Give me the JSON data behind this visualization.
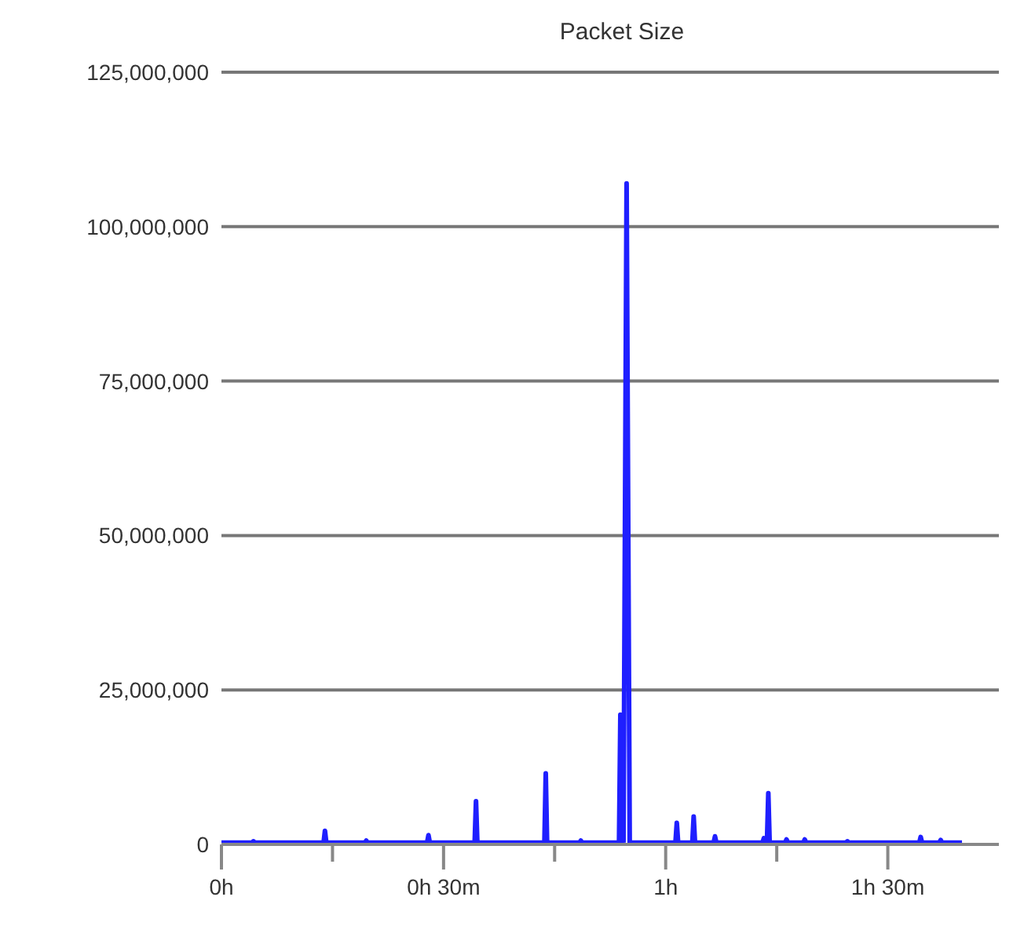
{
  "chart_data": {
    "type": "line",
    "title": "Packet Size",
    "x": [
      0,
      0.069,
      0.072,
      0.075,
      0.23,
      0.233,
      0.236,
      0.323,
      0.326,
      0.329,
      0.463,
      0.466,
      0.469,
      0.57,
      0.573,
      0.576,
      0.727,
      0.73,
      0.733,
      0.806,
      0.809,
      0.812,
      0.895,
      0.898,
      0.905,
      0.912,
      0.919,
      1.022,
      1.025,
      1.028,
      1.06,
      1.063,
      1.066,
      1.108,
      1.111,
      1.114,
      1.218,
      1.221,
      1.224,
      1.228,
      1.231,
      1.234,
      1.269,
      1.272,
      1.275,
      1.31,
      1.313,
      1.316,
      1.406,
      1.409,
      1.412,
      1.571,
      1.574,
      1.577,
      1.616,
      1.619,
      1.622,
      1.667
    ],
    "series": [
      {
        "color": "#1f1fff",
        "values": [
          300000,
          300000,
          500000,
          300000,
          300000,
          2200000,
          300000,
          300000,
          600000,
          300000,
          300000,
          1500000,
          300000,
          300000,
          7000000,
          300000,
          300000,
          11500000,
          300000,
          300000,
          600000,
          300000,
          300000,
          21000000,
          300000,
          107000000,
          300000,
          300000,
          3500000,
          300000,
          300000,
          4500000,
          300000,
          300000,
          1300000,
          300000,
          300000,
          1000000,
          300000,
          300000,
          8300000,
          300000,
          300000,
          800000,
          300000,
          300000,
          800000,
          300000,
          300000,
          500000,
          300000,
          300000,
          1200000,
          300000,
          300000,
          700000,
          300000,
          300000
        ]
      }
    ],
    "xlim": [
      0,
      1.75
    ],
    "xticks": [
      {
        "value": 0,
        "label": "0h"
      },
      {
        "value": 0.25,
        "label": null
      },
      {
        "value": 0.5,
        "label": "0h 30m"
      },
      {
        "value": 0.75,
        "label": null
      },
      {
        "value": 1,
        "label": "1h"
      },
      {
        "value": 1.25,
        "label": null
      },
      {
        "value": 1.5,
        "label": "1h 30m"
      }
    ],
    "ylim": [
      0,
      125000000
    ],
    "yticks": [
      {
        "value": 0,
        "label": "0"
      },
      {
        "value": 25000000,
        "label": "25,000,000"
      },
      {
        "value": 50000000,
        "label": "50,000,000"
      },
      {
        "value": 75000000,
        "label": "75,000,000"
      },
      {
        "value": 100000000,
        "label": "100,000,000"
      },
      {
        "value": 125000000,
        "label": "125,000,000"
      }
    ],
    "grid": "y",
    "legend": false,
    "marker": "none",
    "line_style": "solid"
  }
}
